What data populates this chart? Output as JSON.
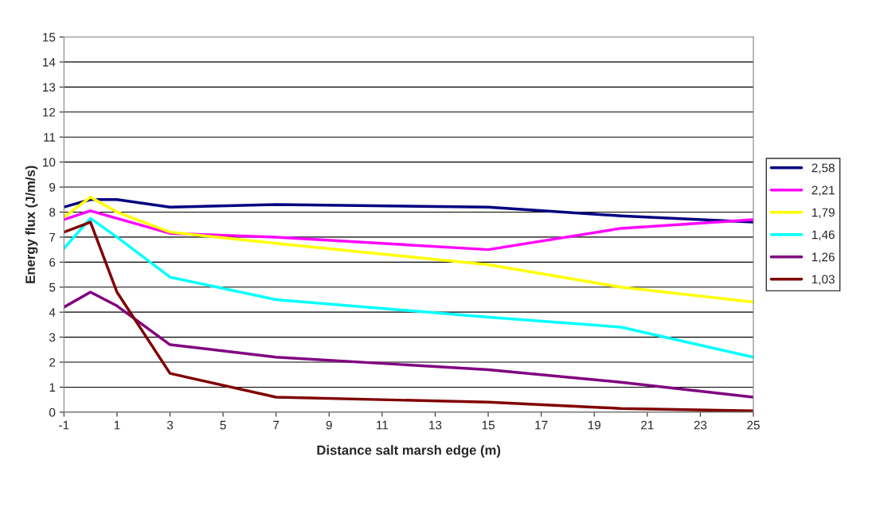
{
  "chart_data": {
    "type": "line",
    "xlabel": "Distance salt marsh edge (m)",
    "ylabel": "Energy flux (J/m/s)",
    "x": [
      -1,
      0,
      1,
      3,
      7,
      15,
      20,
      25
    ],
    "series": [
      {
        "name": "2,58",
        "color": "#000080",
        "values": [
          8.2,
          8.5,
          8.5,
          8.2,
          8.3,
          8.2,
          7.85,
          7.6
        ]
      },
      {
        "name": "2,21",
        "color": "#ff00ff",
        "values": [
          7.7,
          8.05,
          7.75,
          7.15,
          7.0,
          6.5,
          7.35,
          7.7
        ]
      },
      {
        "name": "1,79",
        "color": "#ffff00",
        "values": [
          7.8,
          8.6,
          8.0,
          7.2,
          6.75,
          5.9,
          5.0,
          4.4
        ]
      },
      {
        "name": "1,46",
        "color": "#00ffff",
        "values": [
          6.55,
          7.75,
          7.0,
          5.4,
          4.5,
          3.8,
          3.4,
          2.2
        ]
      },
      {
        "name": "1,26",
        "color": "#800080",
        "values": [
          4.2,
          4.8,
          4.25,
          2.7,
          2.2,
          1.7,
          1.2,
          0.6
        ]
      },
      {
        "name": "1,03",
        "color": "#800000",
        "values": [
          7.2,
          7.6,
          4.8,
          1.55,
          0.6,
          0.4,
          0.15,
          0.05
        ]
      }
    ],
    "xlim": [
      -1,
      25
    ],
    "xticks": [
      -1,
      1,
      3,
      5,
      7,
      9,
      11,
      13,
      15,
      17,
      19,
      21,
      23,
      25
    ],
    "ylim": [
      0,
      15
    ],
    "yticks": [
      0,
      1,
      2,
      3,
      4,
      5,
      6,
      7,
      8,
      9,
      10,
      11,
      12,
      13,
      14,
      15
    ],
    "grid": "y",
    "legend": "right",
    "marker": "none",
    "line_style": "solid"
  }
}
